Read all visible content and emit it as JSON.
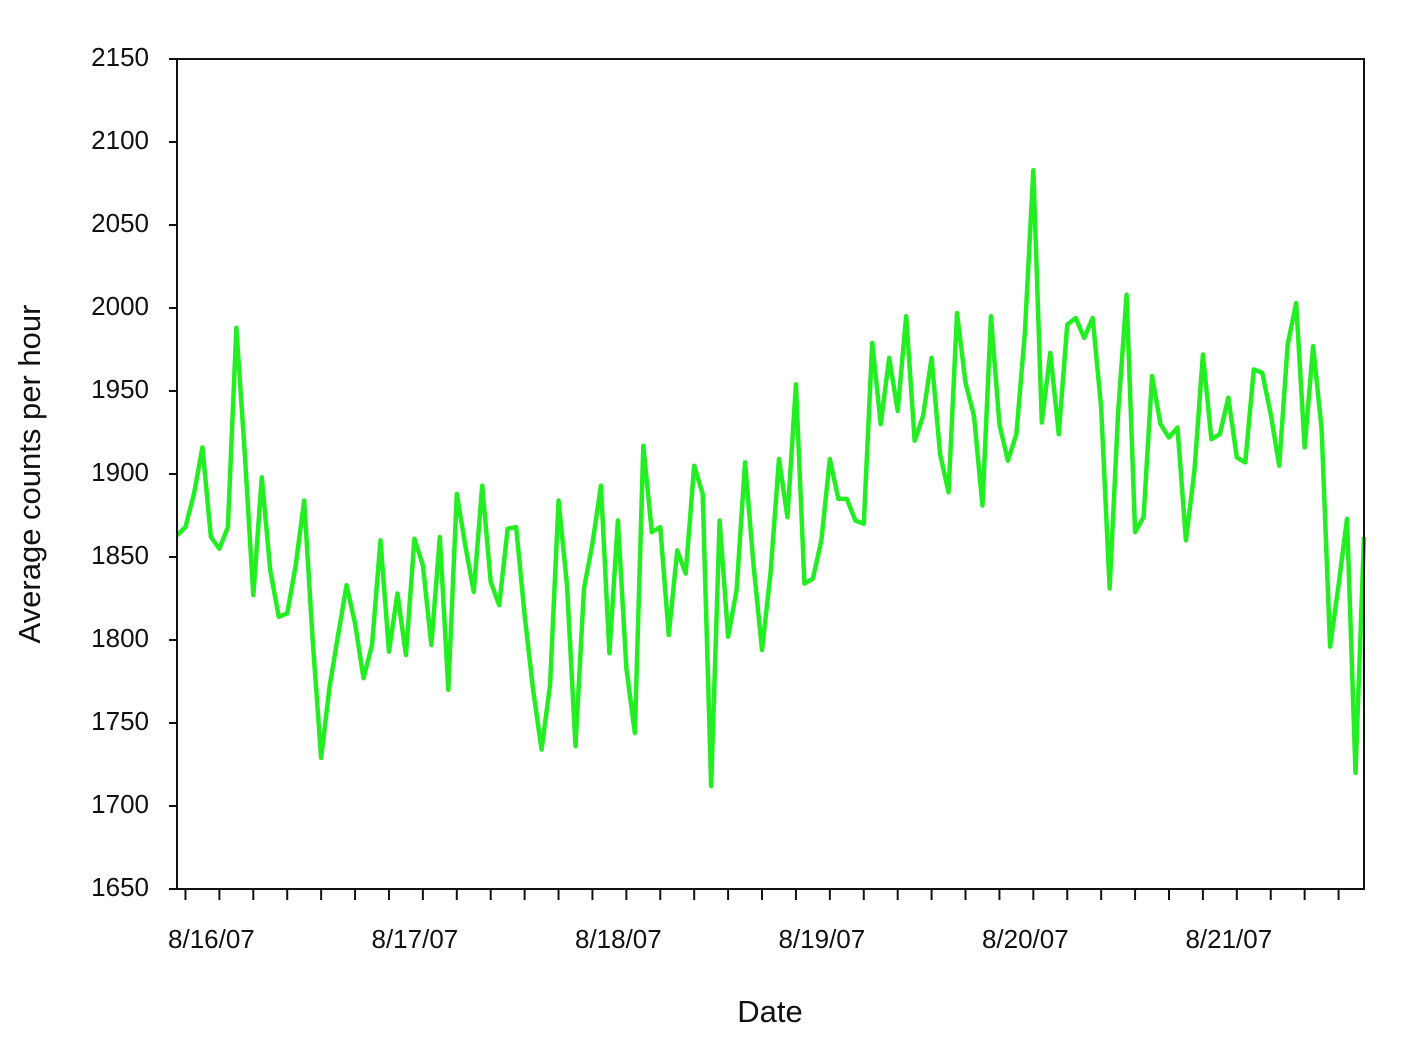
{
  "chart_data": {
    "type": "line",
    "xlabel": "Date",
    "ylabel": "Average counts per hour",
    "categories": [
      null,
      null,
      null,
      null,
      null,
      "8/16/07",
      null,
      null,
      null,
      null,
      null,
      null,
      null,
      null,
      null,
      null,
      null,
      null,
      null,
      null,
      null,
      null,
      null,
      null,
      null,
      null,
      null,
      null,
      null,
      "8/17/07",
      null,
      null,
      null,
      null,
      null,
      null,
      null,
      null,
      null,
      null,
      null,
      null,
      null,
      null,
      null,
      null,
      null,
      null,
      null,
      null,
      null,
      null,
      null,
      "8/18/07",
      null,
      null,
      null,
      null,
      null,
      null,
      null,
      null,
      null,
      null,
      null,
      null,
      null,
      null,
      null,
      null,
      null,
      null,
      null,
      null,
      null,
      null,
      null,
      "8/19/07",
      null,
      null,
      null,
      null,
      null,
      null,
      null,
      null,
      null,
      null,
      null,
      null,
      null,
      null,
      null,
      null,
      null,
      null,
      null,
      null,
      null,
      null,
      null,
      "8/20/07",
      null,
      null,
      null,
      null,
      null,
      null,
      null,
      null,
      null,
      null,
      null,
      null,
      null,
      null,
      null,
      null,
      null,
      null,
      null,
      null,
      null,
      null,
      null,
      "8/21/07",
      null,
      null,
      null,
      null,
      null,
      null,
      null,
      null,
      null,
      null,
      null,
      null,
      null,
      null,
      null
    ],
    "series": [
      {
        "name": "Average counts per hour",
        "color": "#22ee22",
        "values": [
          1863,
          1868,
          1888,
          1916,
          1862,
          1855,
          1868,
          1988,
          1912,
          1827,
          1898,
          1842,
          1814,
          1816,
          1845,
          1884,
          1800,
          1729,
          1772,
          1803,
          1833,
          1810,
          1777,
          1797,
          1860,
          1793,
          1828,
          1791,
          1861,
          1845,
          1797,
          1862,
          1770,
          1888,
          1857,
          1829,
          1893,
          1835,
          1821,
          1867,
          1868,
          1815,
          1770,
          1734,
          1773,
          1884,
          1833,
          1736,
          1831,
          1858,
          1893,
          1792,
          1872,
          1783,
          1744,
          1917,
          1865,
          1868,
          1803,
          1854,
          1840,
          1905,
          1888,
          1712,
          1872,
          1802,
          1830,
          1907,
          1845,
          1794,
          1840,
          1909,
          1874,
          1954,
          1834,
          1837,
          1860,
          1909,
          1885,
          1885,
          1872,
          1870,
          1979,
          1930,
          1970,
          1938,
          1995,
          1920,
          1935,
          1970,
          1912,
          1889,
          1997,
          1955,
          1935,
          1881,
          1995,
          1930,
          1908,
          1924,
          1985,
          2083,
          1931,
          1973,
          1924,
          1990,
          1994,
          1982,
          1994,
          1940,
          1831,
          1937,
          2008,
          1865,
          1874,
          1959,
          1930,
          1922,
          1928,
          1860,
          1902,
          1972,
          1921,
          1924,
          1946,
          1910,
          1907,
          1963,
          1961,
          1936,
          1905,
          1978,
          2003,
          1916,
          1977,
          1927,
          1796,
          1833,
          1873,
          1720,
          1862
        ]
      }
    ],
    "ylim": [
      1650,
      2150
    ],
    "yticks": [
      1650,
      1700,
      1750,
      1800,
      1850,
      1900,
      1950,
      2000,
      2050,
      2100,
      2150
    ],
    "grid": false
  }
}
